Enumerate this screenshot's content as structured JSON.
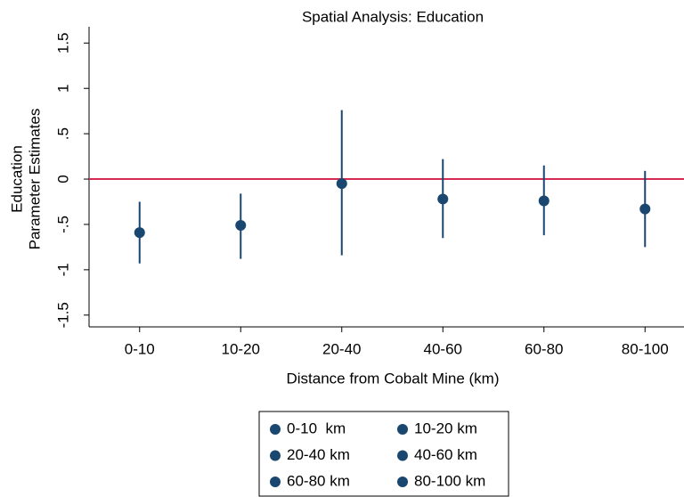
{
  "chart_data": {
    "type": "errorbar",
    "title": "Spatial Analysis: Education",
    "x_label": "Distance from Cobalt Mine (km)",
    "y_label": [
      "Education",
      "Parameter Estimates"
    ],
    "categories": [
      "0-10",
      "10-20",
      "20-40",
      "40-60",
      "60-80",
      "80-100"
    ],
    "ylim": [
      -1.63,
      1.68
    ],
    "yticks": [
      -1.5,
      -1,
      {
        "value": -0.5,
        "label": "-.5"
      },
      0,
      {
        "value": 0.5,
        "label": ".5"
      },
      1,
      1.5
    ],
    "reference_line": {
      "value": 0,
      "color": "#d62a52"
    },
    "series": [
      {
        "name": "0-10  km",
        "color": "#1a476f",
        "values": [
          -0.59,
          null,
          null,
          null,
          null,
          null
        ],
        "ci_lower": [
          -0.93,
          null,
          null,
          null,
          null,
          null
        ],
        "ci_upper": [
          -0.25,
          null,
          null,
          null,
          null,
          null
        ]
      },
      {
        "name": "10-20 km",
        "color": "#1a476f",
        "values": [
          null,
          -0.51,
          null,
          null,
          null,
          null
        ],
        "ci_lower": [
          null,
          -0.88,
          null,
          null,
          null,
          null
        ],
        "ci_upper": [
          null,
          -0.16,
          null,
          null,
          null,
          null
        ]
      },
      {
        "name": "20-40 km",
        "color": "#1a476f",
        "values": [
          null,
          null,
          -0.05,
          null,
          null,
          null
        ],
        "ci_lower": [
          null,
          null,
          -0.84,
          null,
          null,
          null
        ],
        "ci_upper": [
          null,
          null,
          0.76,
          null,
          null,
          null
        ]
      },
      {
        "name": "40-60 km",
        "color": "#1a476f",
        "values": [
          null,
          null,
          null,
          -0.22,
          null,
          null
        ],
        "ci_lower": [
          null,
          null,
          null,
          -0.65,
          null,
          null
        ],
        "ci_upper": [
          null,
          null,
          null,
          0.22,
          null,
          null
        ]
      },
      {
        "name": "60-80 km",
        "color": "#1a476f",
        "values": [
          null,
          null,
          null,
          null,
          -0.24,
          null
        ],
        "ci_lower": [
          null,
          null,
          null,
          null,
          -0.62,
          null
        ],
        "ci_upper": [
          null,
          null,
          null,
          null,
          0.15,
          null
        ]
      },
      {
        "name": "80-100 km",
        "color": "#1a476f",
        "values": [
          null,
          null,
          null,
          null,
          null,
          -0.33
        ],
        "ci_lower": [
          null,
          null,
          null,
          null,
          null,
          -0.75
        ],
        "ci_upper": [
          null,
          null,
          null,
          null,
          null,
          0.09
        ]
      }
    ]
  }
}
